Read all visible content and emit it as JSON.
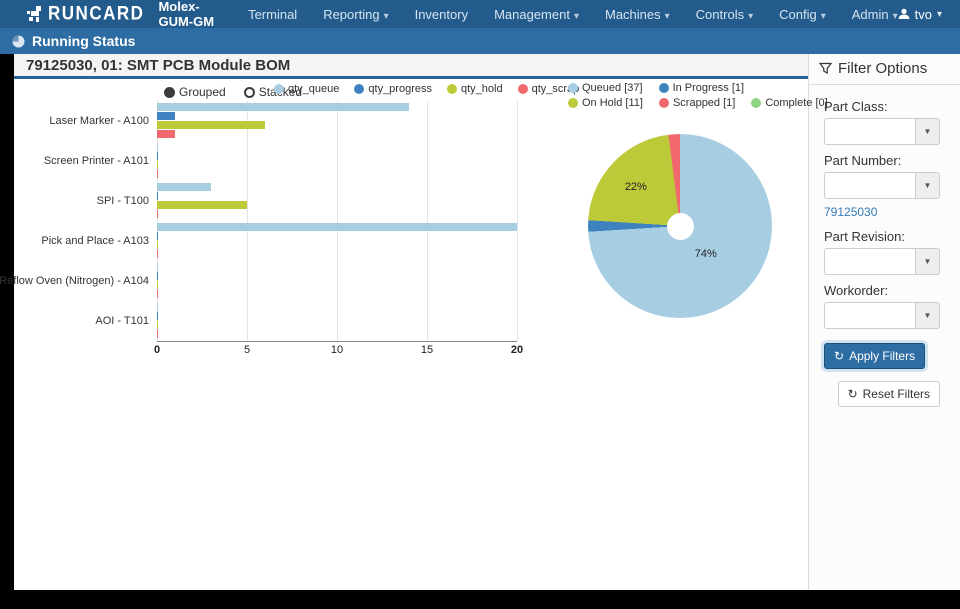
{
  "navbar": {
    "logo_text": "RUNCARD",
    "brand": "Molex-GUM-GM",
    "items": [
      {
        "label": "Terminal",
        "dropdown": false
      },
      {
        "label": "Reporting",
        "dropdown": true
      },
      {
        "label": "Inventory",
        "dropdown": false
      },
      {
        "label": "Management",
        "dropdown": true
      },
      {
        "label": "Machines",
        "dropdown": true
      },
      {
        "label": "Controls",
        "dropdown": true
      },
      {
        "label": "Config",
        "dropdown": true
      },
      {
        "label": "Admin",
        "dropdown": true
      }
    ],
    "user": "tvo"
  },
  "subnav": {
    "title": "Running Status"
  },
  "page": {
    "title": "79125030, 01: SMT PCB Module BOM"
  },
  "chart_controls": {
    "grouped_label": "Grouped",
    "stacked_label": "Stacked",
    "selected": "Grouped"
  },
  "chart_data": [
    {
      "type": "bar",
      "orientation": "horizontal",
      "title": "",
      "categories": [
        "Laser Marker - A100",
        "Screen Printer - A101",
        "SPI - T100",
        "Pick and Place - A103",
        "Reflow Oven (Nitrogen) - A104",
        "AOI - T101"
      ],
      "series": [
        {
          "name": "qty_queue",
          "color": "#a7cde3",
          "values": [
            14,
            0,
            3,
            20,
            0,
            0
          ]
        },
        {
          "name": "qty_progress",
          "color": "#3e83bf",
          "values": [
            1,
            0,
            0,
            0,
            0,
            0
          ]
        },
        {
          "name": "qty_hold",
          "color": "#bcc939",
          "values": [
            6,
            0,
            5,
            0,
            0,
            0
          ]
        },
        {
          "name": "qty_scrap",
          "color": "#f2696d",
          "values": [
            1,
            0,
            0,
            0,
            0,
            0
          ]
        }
      ],
      "xlim": [
        0,
        20
      ],
      "xticks": [
        0,
        5,
        10,
        15,
        20
      ],
      "grid": true,
      "legend_position": "top"
    },
    {
      "type": "pie",
      "labels": [
        "Queued [37]",
        "In Progress [1]",
        "On Hold [11]",
        "Scrapped [1]",
        "Complete [0]"
      ],
      "values": [
        37,
        1,
        11,
        1,
        0
      ],
      "colors": [
        "#a7cde3",
        "#3e83bf",
        "#bcc939",
        "#f2696d",
        "#8fd483"
      ],
      "donut_hole": 0.14,
      "legend_position": "top",
      "pct_labels": {
        "queued": "74%",
        "on_hold": "22%"
      }
    }
  ],
  "sidebar": {
    "title": "Filter Options",
    "fields": [
      {
        "label": "Part Class:",
        "value": "",
        "link": ""
      },
      {
        "label": "Part Number:",
        "value": "",
        "link": "79125030"
      },
      {
        "label": "Part Revision:",
        "value": "",
        "link": ""
      },
      {
        "label": "Workorder:",
        "value": "",
        "link": ""
      }
    ],
    "apply_label": "Apply Filters",
    "reset_label": "Reset Filters",
    "refresh_icon_glyph": "↻",
    "dropdown_caret_glyph": "▼"
  },
  "colors": {
    "navbar_bg": "#235c8c",
    "subnav_bg": "#2e6da4",
    "title_underline": "#2a6496",
    "link": "#337ab7",
    "apply_bg": "#2e6da4"
  }
}
